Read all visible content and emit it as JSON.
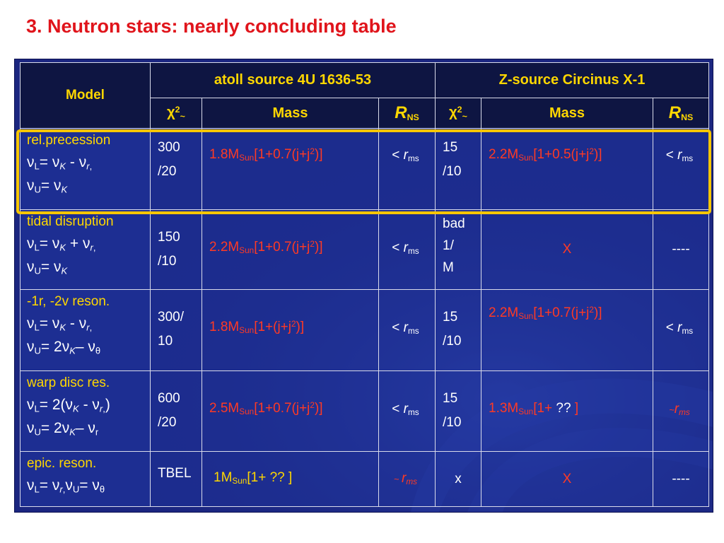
{
  "title": "3. Neutron stars:  nearly concluding table",
  "header": {
    "model": "Model",
    "atoll": "atoll source 4U 1636-53",
    "zsource": "Z-source Circinus X-1",
    "mass": "Mass",
    "chi_symbol": "χ",
    "chi_sup": "2",
    "chi_sub": "~",
    "r_letter": "R",
    "r_sub": "NS"
  },
  "rows": [
    {
      "model_name": "rel.precession",
      "atoll_chi": [
        "300",
        "/20"
      ],
      "atoll_mass": {
        "pre": "1.8M",
        "sub": "Sun",
        "post": "[1+0.7(j+j",
        "sup": "2",
        "end": ")]"
      },
      "atoll_r": {
        "pre": "< ",
        "r": "r",
        "sub": "ms"
      },
      "z_chi": [
        "15",
        "/10"
      ],
      "z_mass": {
        "pre": "2.2M",
        "sub": "Sun",
        "post": "[1+0.5(j+j",
        "sup": "2",
        "end": ")]"
      },
      "z_r": {
        "pre": "< ",
        "r": "r",
        "sub": "ms"
      }
    },
    {
      "model_name": "tidal disruption",
      "atoll_chi": [
        "150",
        "/10"
      ],
      "atoll_mass": {
        "pre": "2.2M",
        "sub": "Sun",
        "post": "[1+0.7(j+j",
        "sup": "2",
        "end": ")]"
      },
      "atoll_r": {
        "pre": "< ",
        "r": "r",
        "sub": "ms"
      },
      "z_chi": [
        "bad",
        "1/",
        "M"
      ],
      "z_mass_text": "X",
      "z_r_text": "----"
    },
    {
      "model_name": "-1r, -2v reson.",
      "atoll_chi": [
        "300/",
        "10"
      ],
      "atoll_mass": {
        "pre": "1.8M",
        "sub": "Sun",
        "post": "[1+(j+j",
        "sup": "2",
        "end": ")]"
      },
      "atoll_r": {
        "pre": "< ",
        "r": "r",
        "sub": "ms"
      },
      "z_chi": [
        "15",
        "/10"
      ],
      "z_mass": {
        "pre": "2.2M",
        "sub": "Sun",
        "post": "[1+0.7(j+j",
        "sup": "2",
        "end": ")]"
      },
      "z_r": {
        "pre": "< ",
        "r": "r",
        "sub": "ms"
      }
    },
    {
      "model_name": "warp disc res.",
      "atoll_chi": [
        "600",
        "/20"
      ],
      "atoll_mass": {
        "pre": "2.5M",
        "sub": "Sun",
        "post": "[1+0.7(j+j",
        "sup": "2",
        "end": ")]"
      },
      "atoll_r": {
        "pre": "< ",
        "r": "r",
        "sub": "ms"
      },
      "z_chi": [
        "15",
        "/10"
      ],
      "z_mass": {
        "pre": "1.3M",
        "sub": "Sun",
        "post": "[1+ ",
        "mid": "??",
        "end": " ]"
      },
      "z_r": {
        "pre": "~",
        "r": "r",
        "sub": "ms"
      }
    },
    {
      "model_name": "epic. reson.",
      "atoll_chi": [
        "TBEL"
      ],
      "atoll_mass": {
        "pre": "1M",
        "sub": "Sun",
        "post": "[1+ ?? ]"
      },
      "atoll_r": {
        "pre": "~ ",
        "r": "r",
        "sub": "ms"
      },
      "z_chi_text": "x",
      "z_mass_text": "X",
      "z_r_text": "----"
    }
  ],
  "nu": {
    "nu": "ν",
    "L": "L",
    "U": "U",
    "K": "K",
    "r": "r",
    "theta": "θ",
    "eq": "= ",
    "minus": " - ",
    "plus": " + ",
    "comma": ",",
    "two": "2",
    "open": "(",
    "close": ")",
    "dash": "–"
  },
  "colors": {
    "frame": "#1b2680",
    "header": "#0e1542",
    "gold": "#ffd700",
    "red": "#ff3a24",
    "title": "#e0141b",
    "highlight": "#f7c600"
  }
}
